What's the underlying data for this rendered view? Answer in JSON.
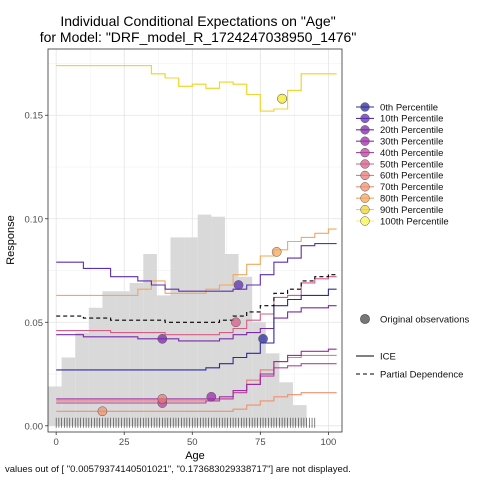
{
  "chart_data": {
    "type": "line",
    "title": "Individual Conditional Expectations on \"Age\"",
    "subtitle": "for Model: \"DRF_model_R_1724247038950_1476\"",
    "xlabel": "Age",
    "ylabel": "Response",
    "xlim": [
      -3,
      105
    ],
    "ylim": [
      -0.003,
      0.182
    ],
    "x_ticks": [
      0,
      25,
      50,
      75,
      100
    ],
    "y_ticks": [
      0.0,
      0.05,
      0.1,
      0.15
    ],
    "y_tick_labels": [
      "0.00",
      "0.05",
      "0.10",
      "0.15"
    ],
    "grid": true,
    "legend_position": "right",
    "footnote": "values out of [ \"0.00579374140501021\",  \"0.173683029338717\"] are not displayed.",
    "histogram": {
      "bins": [
        {
          "x0": -3,
          "x1": 2,
          "value": 0.019
        },
        {
          "x0": 2,
          "x1": 7,
          "value": 0.033
        },
        {
          "x0": 7,
          "x1": 12,
          "value": 0.045
        },
        {
          "x0": 12,
          "x1": 17,
          "value": 0.057
        },
        {
          "x0": 17,
          "x1": 22,
          "value": 0.065
        },
        {
          "x0": 22,
          "x1": 27,
          "value": 0.065
        },
        {
          "x0": 27,
          "x1": 32,
          "value": 0.069
        },
        {
          "x0": 32,
          "x1": 37,
          "value": 0.083
        },
        {
          "x0": 37,
          "x1": 42,
          "value": 0.063
        },
        {
          "x0": 42,
          "x1": 47,
          "value": 0.091
        },
        {
          "x0": 47,
          "x1": 52,
          "value": 0.091
        },
        {
          "x0": 52,
          "x1": 57,
          "value": 0.102
        },
        {
          "x0": 57,
          "x1": 62,
          "value": 0.101
        },
        {
          "x0": 62,
          "x1": 67,
          "value": 0.083
        },
        {
          "x0": 67,
          "x1": 72,
          "value": 0.072
        },
        {
          "x0": 72,
          "x1": 77,
          "value": 0.05
        },
        {
          "x0": 77,
          "x1": 82,
          "value": 0.035
        },
        {
          "x0": 82,
          "x1": 87,
          "value": 0.021
        },
        {
          "x0": 87,
          "x1": 92,
          "value": 0.01
        }
      ]
    },
    "x": [
      0,
      10,
      20,
      30,
      35,
      40,
      45,
      50,
      55,
      60,
      65,
      70,
      75,
      80,
      85,
      90,
      95,
      100,
      103
    ],
    "series": [
      {
        "name": "0th Percentile",
        "color": "#2b2b9e",
        "observation": [
          76,
          0.042
        ],
        "values": [
          0.027,
          0.027,
          0.027,
          0.027,
          0.027,
          0.027,
          0.027,
          0.027,
          0.028,
          0.03,
          0.033,
          0.035,
          0.04,
          0.058,
          0.061,
          0.063,
          0.063,
          0.066,
          0.066
        ]
      },
      {
        "name": "10th Percentile",
        "color": "#5c2fb3",
        "observation": [
          67,
          0.068
        ],
        "values": [
          0.079,
          0.076,
          0.072,
          0.07,
          0.068,
          0.066,
          0.065,
          0.065,
          0.065,
          0.065,
          0.066,
          0.068,
          0.073,
          0.079,
          0.081,
          0.087,
          0.088,
          0.088,
          0.088
        ]
      },
      {
        "name": "20th Percentile",
        "color": "#7b2aa8",
        "observation": [
          39,
          0.042
        ],
        "values": [
          0.044,
          0.043,
          0.043,
          0.042,
          0.042,
          0.042,
          0.041,
          0.041,
          0.041,
          0.042,
          0.044,
          0.045,
          0.047,
          0.052,
          0.055,
          0.057,
          0.057,
          0.058,
          0.058
        ]
      },
      {
        "name": "30th Percentile",
        "color": "#9b2ba6",
        "observation": [
          57,
          0.014
        ],
        "values": [
          0.013,
          0.013,
          0.013,
          0.013,
          0.013,
          0.013,
          0.013,
          0.013,
          0.013,
          0.014,
          0.017,
          0.02,
          0.025,
          0.031,
          0.034,
          0.036,
          0.036,
          0.037,
          0.037
        ]
      },
      {
        "name": "40th Percentile",
        "color": "#b8439d",
        "observation": [
          39,
          0.011
        ],
        "values": [
          0.011,
          0.011,
          0.011,
          0.011,
          0.011,
          0.011,
          0.011,
          0.011,
          0.012,
          0.013,
          0.016,
          0.02,
          0.024,
          0.028,
          0.029,
          0.03,
          0.03,
          0.03,
          0.03
        ]
      },
      {
        "name": "50th Percentile",
        "color": "#d65c87",
        "observation": [
          66,
          0.05
        ],
        "values": [
          0.046,
          0.046,
          0.045,
          0.045,
          0.045,
          0.044,
          0.044,
          0.044,
          0.044,
          0.045,
          0.047,
          0.051,
          0.054,
          0.062,
          0.063,
          0.069,
          0.071,
          0.072,
          0.072
        ]
      },
      {
        "name": "60th Percentile",
        "color": "#e87a7a",
        "observation": [
          39,
          0.013
        ],
        "values": [
          0.012,
          0.012,
          0.012,
          0.012,
          0.012,
          0.012,
          0.012,
          0.012,
          0.012,
          0.013,
          0.017,
          0.022,
          0.027,
          0.031,
          0.033,
          0.034,
          0.034,
          0.034,
          0.034
        ]
      },
      {
        "name": "70th Percentile",
        "color": "#f0906e",
        "observation": [
          17,
          0.007
        ],
        "values": [
          0.007,
          0.007,
          0.007,
          0.007,
          0.007,
          0.007,
          0.007,
          0.007,
          0.007,
          0.007,
          0.008,
          0.01,
          0.012,
          0.014,
          0.015,
          0.016,
          0.016,
          0.016,
          0.016
        ]
      },
      {
        "name": "80th Percentile",
        "color": "#f5a55c",
        "observation": [
          81,
          0.084
        ],
        "values": [
          0.063,
          0.063,
          0.063,
          0.066,
          0.07,
          0.064,
          0.064,
          0.064,
          0.066,
          0.068,
          0.073,
          0.078,
          0.082,
          0.085,
          0.089,
          0.091,
          0.093,
          0.095,
          0.095
        ]
      },
      {
        "name": "90th Percentile",
        "color": "#f2d437",
        "observation": [
          83,
          0.158
        ],
        "values": [
          0.174,
          0.174,
          0.174,
          0.174,
          0.17,
          0.168,
          0.164,
          0.165,
          0.163,
          0.166,
          0.165,
          0.16,
          0.152,
          0.153,
          0.162,
          0.17,
          0.17,
          0.17,
          0.17
        ]
      },
      {
        "name": "100th Percentile",
        "color": "#f7f55a",
        "observation": [
          83,
          0.158
        ],
        "values": [
          0.174,
          0.174,
          0.174,
          0.174,
          0.17,
          0.168,
          0.164,
          0.165,
          0.163,
          0.166,
          0.165,
          0.16,
          0.152,
          0.153,
          0.162,
          0.17,
          0.17,
          0.17,
          0.17
        ]
      }
    ],
    "partial_dependence": {
      "name": "Partial Dependence",
      "values": [
        0.053,
        0.052,
        0.051,
        0.051,
        0.051,
        0.05,
        0.05,
        0.05,
        0.05,
        0.051,
        0.053,
        0.055,
        0.058,
        0.064,
        0.066,
        0.07,
        0.072,
        0.073,
        0.073
      ]
    },
    "rug_x": [
      0,
      1,
      2,
      3,
      4,
      5,
      6,
      7,
      8,
      9,
      10,
      11,
      12,
      13,
      14,
      15,
      16,
      17,
      18,
      19,
      20,
      21,
      22,
      23,
      24,
      25,
      26,
      27,
      28,
      29,
      30,
      31,
      32,
      33,
      34,
      35,
      36,
      37,
      38,
      39,
      40,
      41,
      42,
      43,
      44,
      45,
      46,
      47,
      48,
      49,
      50,
      51,
      52,
      53,
      54,
      55,
      56,
      57,
      58,
      59,
      60,
      61,
      62,
      63,
      64,
      65,
      66,
      67,
      68,
      69,
      70,
      71,
      72,
      73,
      74,
      75,
      76,
      77,
      78,
      79,
      80,
      81,
      82,
      83,
      84,
      85,
      86,
      87,
      88,
      89,
      90,
      91,
      92,
      93,
      94,
      95
    ],
    "legend": {
      "entries": [
        "0th Percentile",
        "10th Percentile",
        "20th Percentile",
        "30th Percentile",
        "40th Percentile",
        "50th Percentile",
        "60th Percentile",
        "70th Percentile",
        "80th Percentile",
        "90th Percentile",
        "100th Percentile"
      ],
      "observations_label": "Original observations",
      "ice_label": "ICE",
      "pd_label": "Partial Dependence"
    }
  }
}
